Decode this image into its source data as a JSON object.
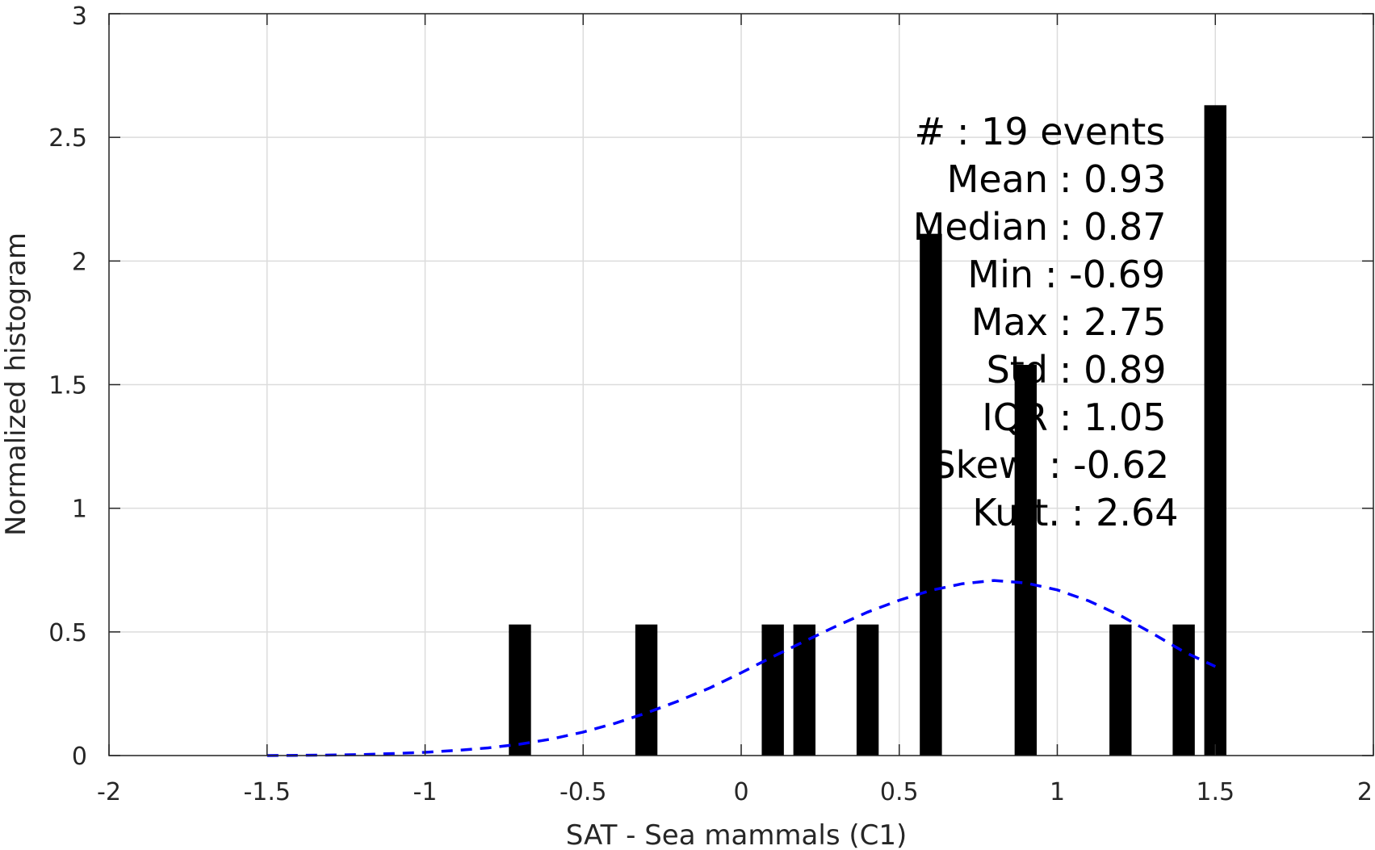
{
  "chart_data": {
    "type": "bar",
    "xlabel": "SAT - Sea mammals  (C1)",
    "ylabel": "Normalized histogram",
    "xlim": [
      -2,
      2
    ],
    "ylim": [
      0,
      3
    ],
    "grid": true,
    "xticks": [
      "-2",
      "-1.5",
      "-1",
      "-0.5",
      "0",
      "0.5",
      "1",
      "1.5",
      "2"
    ],
    "yticks": [
      "0",
      "0.5",
      "1",
      "1.5",
      "2",
      "2.5",
      "3"
    ],
    "bar_width": 0.07,
    "bars": [
      {
        "x": -0.7,
        "value": 0.53
      },
      {
        "x": -0.3,
        "value": 0.53
      },
      {
        "x": 0.1,
        "value": 0.53
      },
      {
        "x": 0.2,
        "value": 0.53
      },
      {
        "x": 0.4,
        "value": 0.53
      },
      {
        "x": 0.6,
        "value": 2.11
      },
      {
        "x": 0.9,
        "value": 1.58
      },
      {
        "x": 1.2,
        "value": 0.53
      },
      {
        "x": 1.4,
        "value": 0.53
      },
      {
        "x": 1.5,
        "value": 2.63
      }
    ],
    "fit_curve": {
      "style": "dashed",
      "color": "#0000ff",
      "x": [
        -1.5,
        -1.4,
        -1.3,
        -1.2,
        -1.1,
        -1.0,
        -0.9,
        -0.8,
        -0.7,
        -0.6,
        -0.5,
        -0.4,
        -0.3,
        -0.2,
        -0.1,
        0.0,
        0.1,
        0.2,
        0.3,
        0.4,
        0.5,
        0.6,
        0.7,
        0.8,
        0.9,
        1.0,
        1.1,
        1.2,
        1.3,
        1.4,
        1.5
      ],
      "y": [
        0.0,
        0.001,
        0.002,
        0.004,
        0.008,
        0.013,
        0.021,
        0.031,
        0.046,
        0.067,
        0.095,
        0.13,
        0.172,
        0.22,
        0.273,
        0.335,
        0.4,
        0.462,
        0.523,
        0.58,
        0.628,
        0.668,
        0.695,
        0.708,
        0.698,
        0.67,
        0.625,
        0.566,
        0.495,
        0.42,
        0.36
      ]
    },
    "colors": {
      "bars": "#000000",
      "fit": "#0000ff",
      "grid": "#dcdcdc",
      "axis": "#262626"
    }
  },
  "stats": [
    {
      "label": "#  ",
      "value": "19 events"
    },
    {
      "label": "Mean",
      "value": "0.93"
    },
    {
      "label": "Median",
      "value": "0.87"
    },
    {
      "label": "Min",
      "value": "-0.69"
    },
    {
      "label": "Max",
      "value": "2.75"
    },
    {
      "label": "Std",
      "value": "0.89"
    },
    {
      "label": "IQR",
      "value": "1.05"
    },
    {
      "label": "Skew.",
      "value": "-0.62"
    },
    {
      "label": "Kurt.",
      "value": "2.64"
    }
  ]
}
